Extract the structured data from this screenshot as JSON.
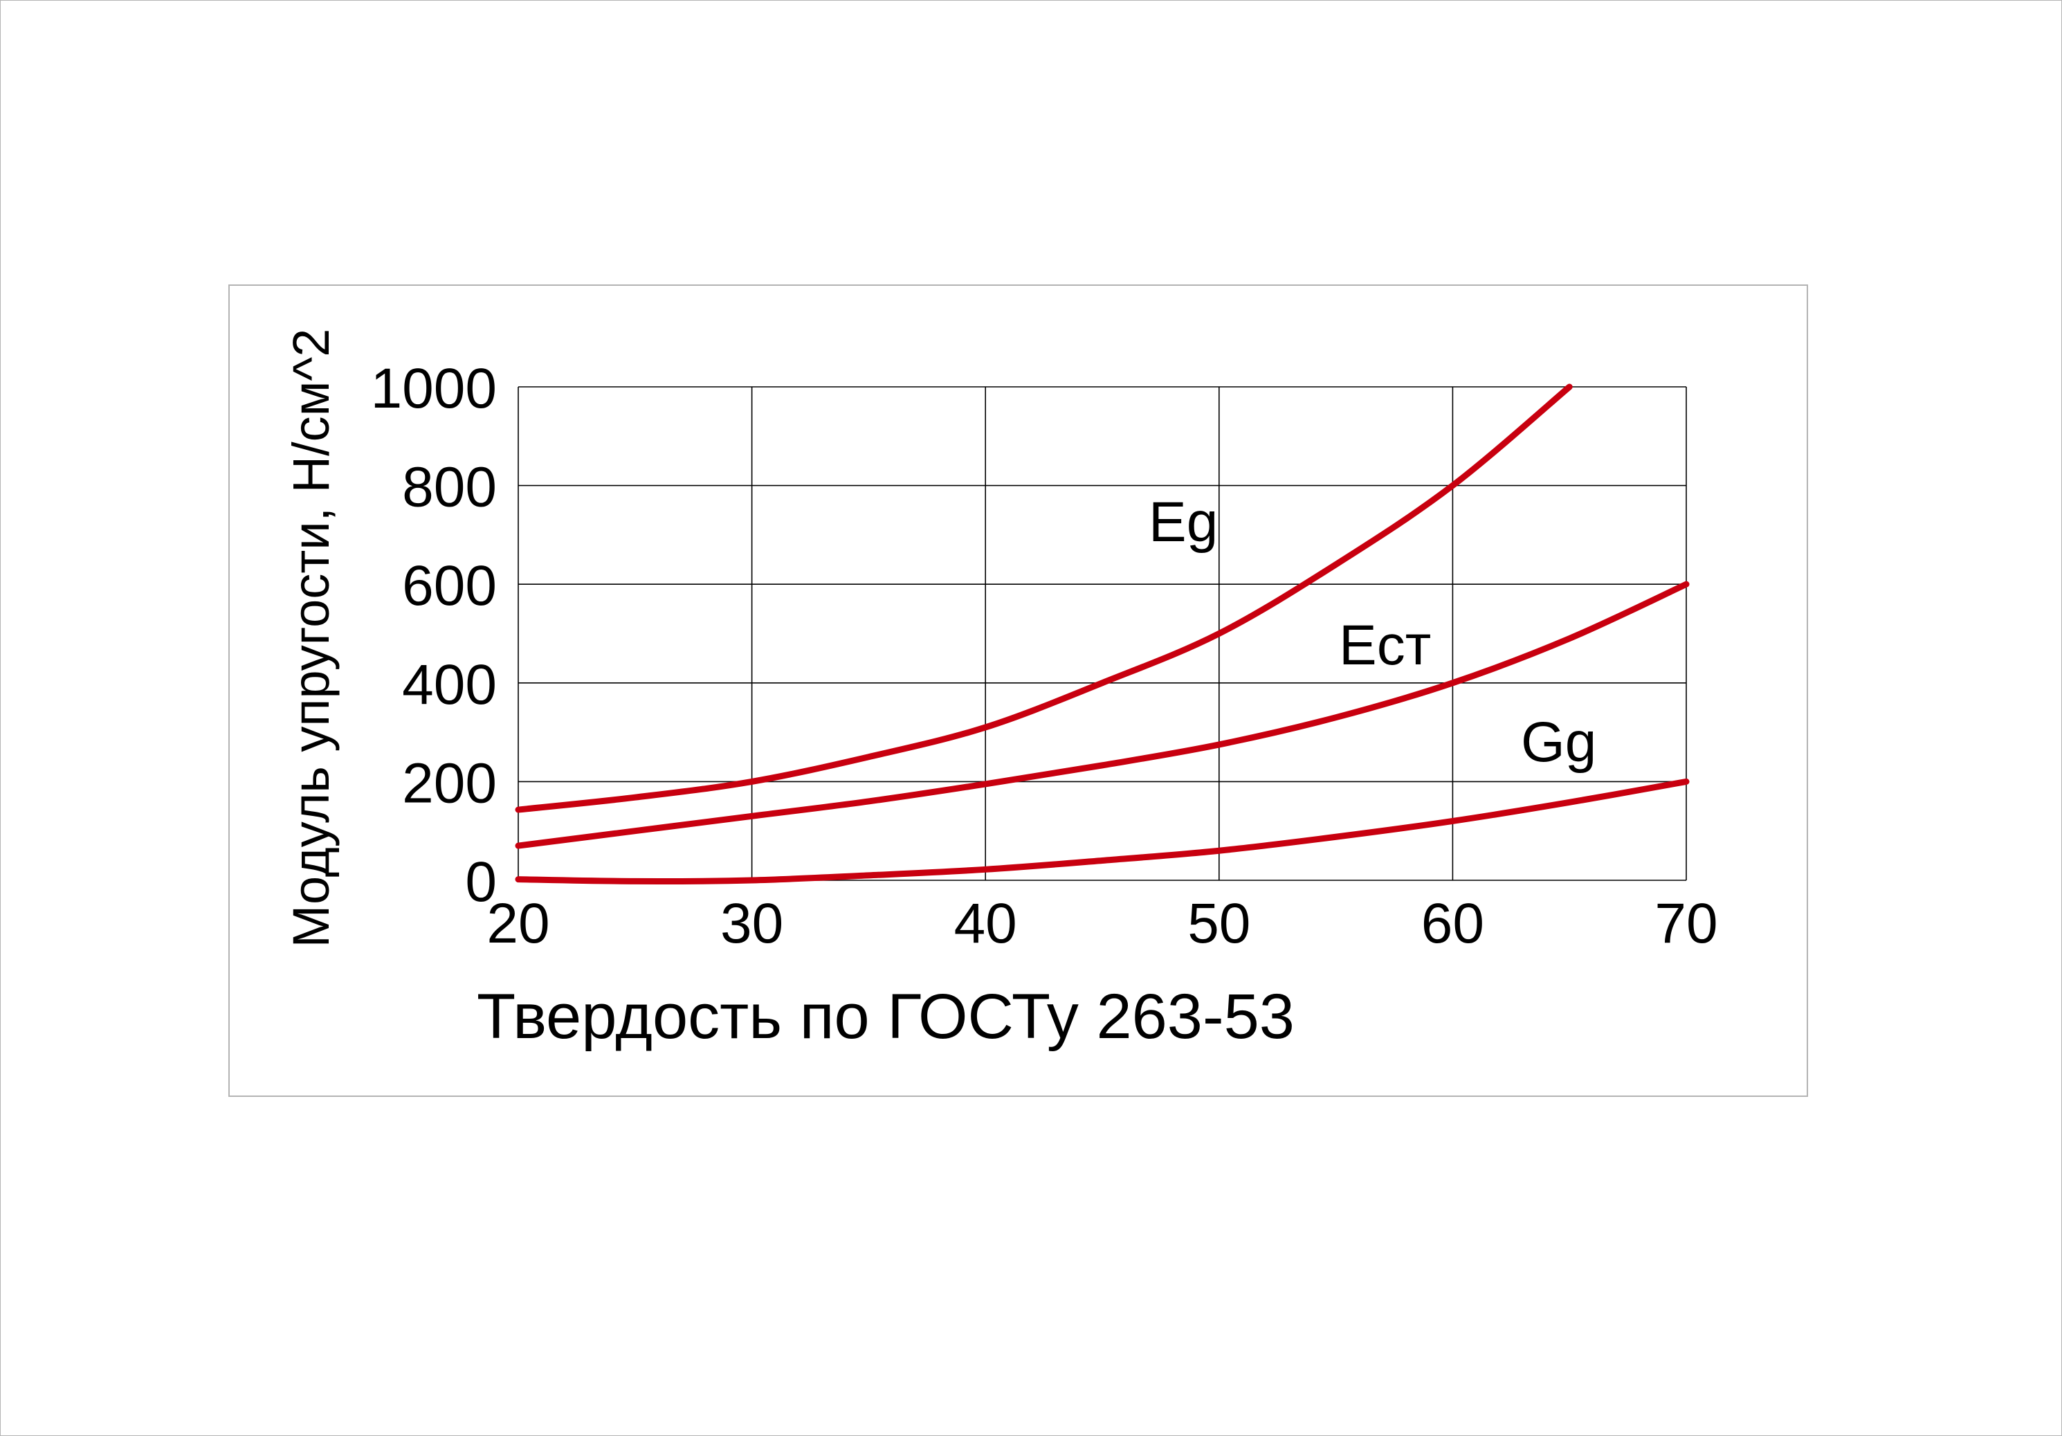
{
  "chart_data": {
    "type": "line",
    "xlabel": "Твердость по ГОСТу 263-53",
    "ylabel": "Модуль упругости, Н/см^2",
    "xlim": [
      20,
      70
    ],
    "ylim": [
      0,
      1000
    ],
    "x_ticks": [
      "20",
      "30",
      "40",
      "50",
      "60",
      "70"
    ],
    "y_ticks": [
      "0",
      "200",
      "400",
      "600",
      "800",
      "1000"
    ],
    "grid": true,
    "line_color": "#c8000f",
    "series": [
      {
        "name": "Eg",
        "x": [
          20,
          25,
          30,
          35,
          40,
          45,
          50,
          55,
          60,
          65
        ],
        "y": [
          143,
          168,
          200,
          250,
          310,
          400,
          500,
          640,
          800,
          1000
        ]
      },
      {
        "name": "Ecт",
        "x": [
          20,
          25,
          30,
          35,
          40,
          45,
          50,
          55,
          60,
          65,
          70
        ],
        "y": [
          70,
          100,
          130,
          160,
          195,
          233,
          275,
          330,
          400,
          490,
          600
        ]
      },
      {
        "name": "Gg",
        "x": [
          20,
          25,
          30,
          35,
          40,
          45,
          50,
          55,
          60,
          65,
          70
        ],
        "y": [
          2,
          -2,
          0,
          10,
          22,
          40,
          60,
          88,
          120,
          158,
          200
        ]
      }
    ]
  }
}
